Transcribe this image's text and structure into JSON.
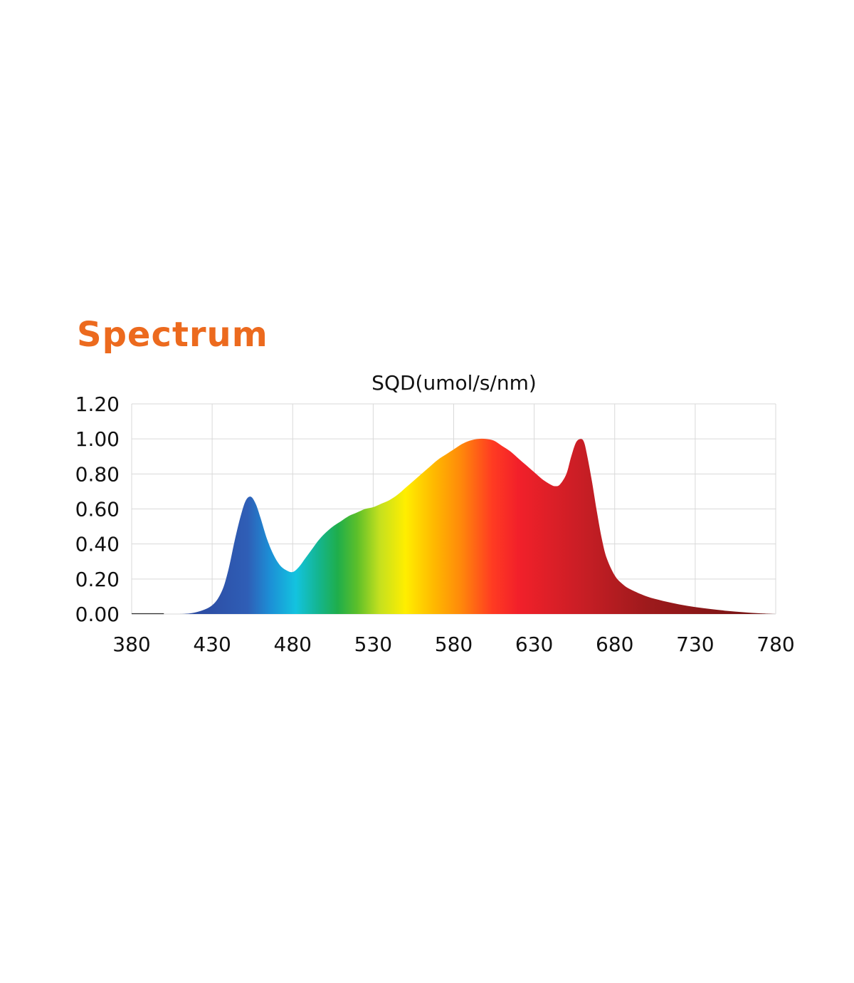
{
  "heading": {
    "text": "Spectrum"
  },
  "colors": {
    "heading": "#ec6a1e",
    "grid": "#d9d9d9",
    "axis_text": "#111111"
  },
  "chart_data": {
    "type": "area",
    "title": "SQD(umol/s/nm)",
    "xlabel": "",
    "ylabel": "",
    "xlim": [
      380,
      780
    ],
    "ylim": [
      0,
      1.2
    ],
    "x_ticks": [
      "380",
      "430",
      "480",
      "530",
      "580",
      "630",
      "680",
      "730",
      "780"
    ],
    "y_ticks": [
      "1.20",
      "1.00",
      "0.80",
      "0.60",
      "0.40",
      "0.20",
      "0.00"
    ],
    "grid": true,
    "fill": "visible-spectrum gradient",
    "series": [
      {
        "x": [
          380,
          400,
          410,
          420,
          430,
          436,
          440,
          444,
          448,
          451,
          454,
          457,
          460,
          464,
          468,
          472,
          476,
          480,
          484,
          488,
          492,
          496,
          500,
          505,
          510,
          515,
          520,
          525,
          530,
          535,
          540,
          545,
          550,
          555,
          560,
          565,
          570,
          575,
          580,
          585,
          590,
          595,
          600,
          605,
          610,
          615,
          620,
          625,
          630,
          635,
          640,
          643,
          646,
          650,
          653,
          656,
          659,
          661,
          663,
          666,
          669,
          672,
          675,
          680,
          685,
          690,
          700,
          710,
          720,
          730,
          740,
          750,
          760,
          770,
          780
        ],
        "y": [
          0.0,
          0.0,
          0.0,
          0.01,
          0.05,
          0.13,
          0.25,
          0.42,
          0.57,
          0.65,
          0.67,
          0.63,
          0.55,
          0.43,
          0.34,
          0.28,
          0.25,
          0.24,
          0.27,
          0.32,
          0.37,
          0.42,
          0.46,
          0.5,
          0.53,
          0.56,
          0.58,
          0.6,
          0.61,
          0.63,
          0.65,
          0.68,
          0.72,
          0.76,
          0.8,
          0.84,
          0.88,
          0.91,
          0.94,
          0.97,
          0.99,
          1.0,
          1.0,
          0.99,
          0.96,
          0.93,
          0.89,
          0.85,
          0.81,
          0.77,
          0.74,
          0.73,
          0.74,
          0.8,
          0.9,
          0.98,
          1.0,
          0.98,
          0.9,
          0.75,
          0.58,
          0.43,
          0.32,
          0.22,
          0.17,
          0.14,
          0.1,
          0.075,
          0.055,
          0.04,
          0.028,
          0.018,
          0.01,
          0.004,
          0.0
        ]
      }
    ]
  }
}
